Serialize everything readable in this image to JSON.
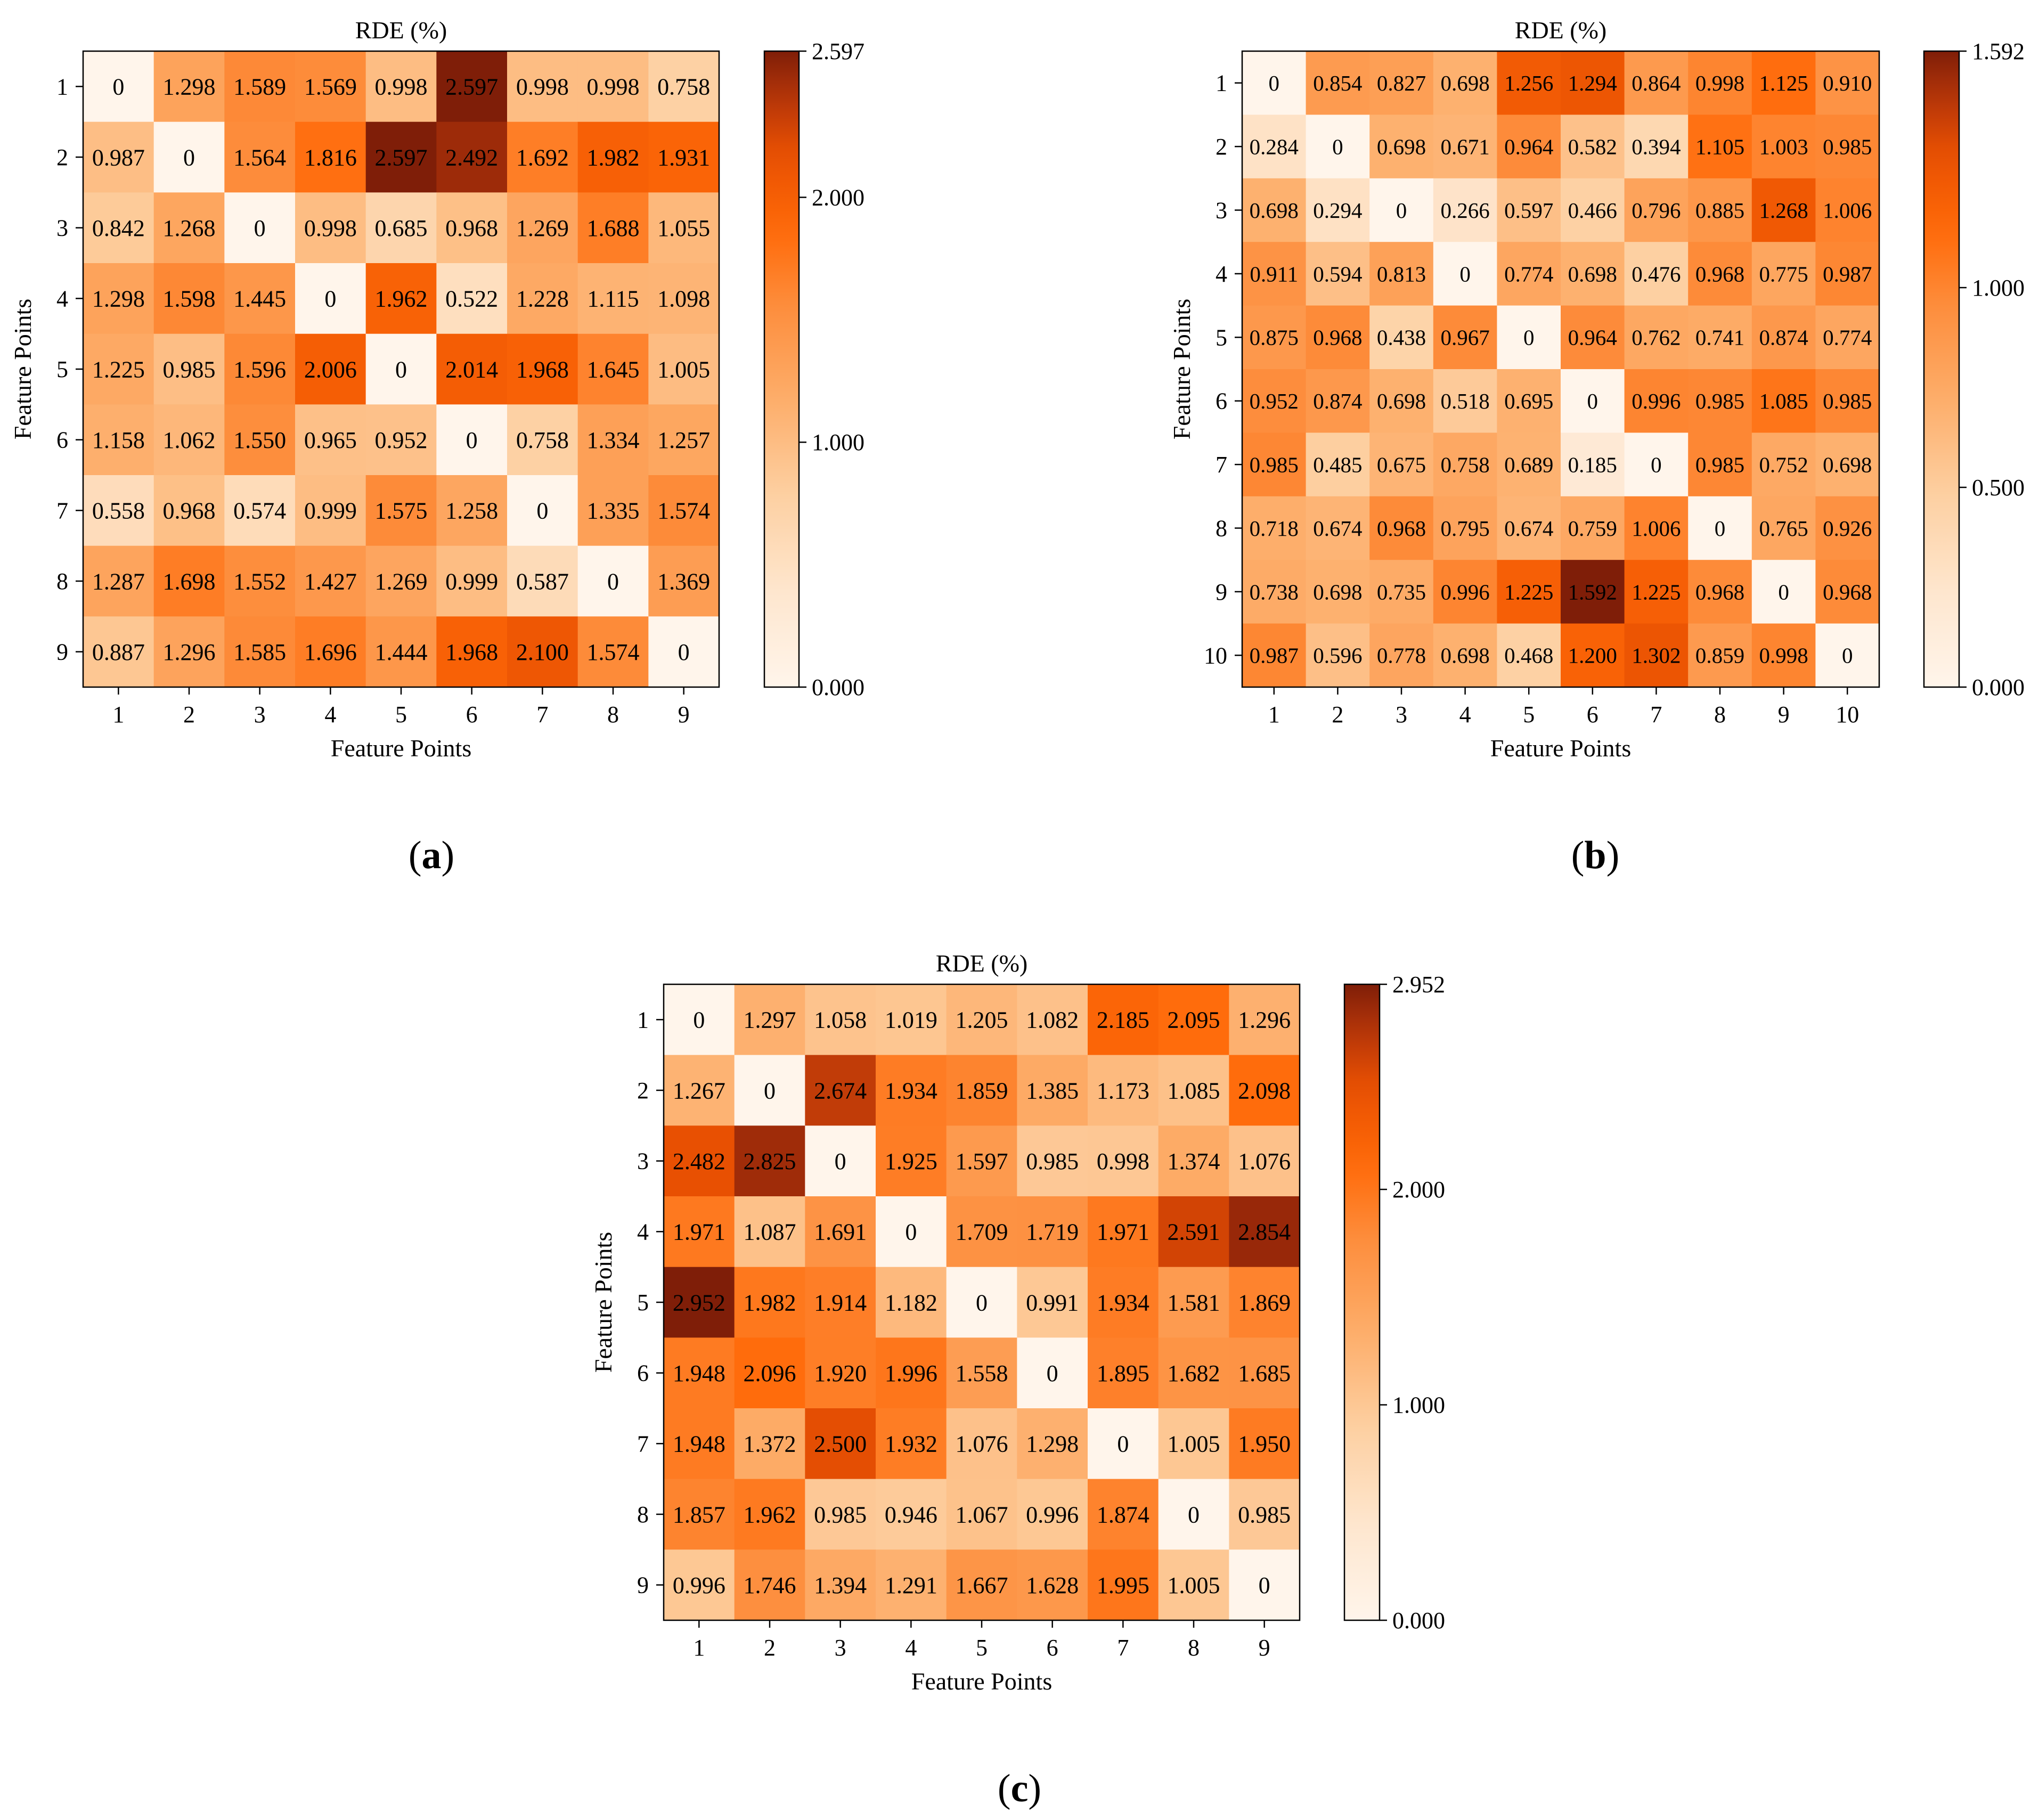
{
  "chart_data": [
    {
      "type": "heatmap",
      "panel_label": "a",
      "title": "RDE (%)",
      "xlabel": "Feature Points",
      "ylabel": "Feature Points",
      "x_ticks": [
        "1",
        "2",
        "3",
        "4",
        "5",
        "6",
        "7",
        "8",
        "9"
      ],
      "y_ticks": [
        "1",
        "2",
        "3",
        "4",
        "5",
        "6",
        "7",
        "8",
        "9"
      ],
      "colorbar": {
        "min": 0.0,
        "max": 2.597,
        "ticks": [
          "0.000",
          "1.000",
          "2.000",
          "2.597"
        ]
      },
      "values": [
        [
          "0",
          "1.298",
          "1.589",
          "1.569",
          "0.998",
          "2.597",
          "0.998",
          "0.998",
          "0.758"
        ],
        [
          "0.987",
          "0",
          "1.564",
          "1.816",
          "2.597",
          "2.492",
          "1.692",
          "1.982",
          "1.931"
        ],
        [
          "0.842",
          "1.268",
          "0",
          "0.998",
          "0.685",
          "0.968",
          "1.269",
          "1.688",
          "1.055"
        ],
        [
          "1.298",
          "1.598",
          "1.445",
          "0",
          "1.962",
          "0.522",
          "1.228",
          "1.115",
          "1.098"
        ],
        [
          "1.225",
          "0.985",
          "1.596",
          "2.006",
          "0",
          "2.014",
          "1.968",
          "1.645",
          "1.005"
        ],
        [
          "1.158",
          "1.062",
          "1.550",
          "0.965",
          "0.952",
          "0",
          "0.758",
          "1.334",
          "1.257"
        ],
        [
          "0.558",
          "0.968",
          "0.574",
          "0.999",
          "1.575",
          "1.258",
          "0",
          "1.335",
          "1.574"
        ],
        [
          "1.287",
          "1.698",
          "1.552",
          "1.427",
          "1.269",
          "0.999",
          "0.587",
          "0",
          "1.369"
        ],
        [
          "0.887",
          "1.296",
          "1.585",
          "1.696",
          "1.444",
          "1.968",
          "2.100",
          "1.574",
          "0"
        ]
      ]
    },
    {
      "type": "heatmap",
      "panel_label": "b",
      "title": "RDE (%)",
      "xlabel": "Feature Points",
      "ylabel": "Feature Points",
      "x_ticks": [
        "1",
        "2",
        "3",
        "4",
        "5",
        "6",
        "7",
        "8",
        "9",
        "10"
      ],
      "y_ticks": [
        "1",
        "2",
        "3",
        "4",
        "5",
        "6",
        "7",
        "8",
        "9",
        "10"
      ],
      "colorbar": {
        "min": 0.0,
        "max": 1.592,
        "ticks": [
          "0.000",
          "0.500",
          "1.000",
          "1.592"
        ]
      },
      "values": [
        [
          "0",
          "0.854",
          "0.827",
          "0.698",
          "1.256",
          "1.294",
          "0.864",
          "0.998",
          "1.125",
          "0.910"
        ],
        [
          "0.284",
          "0",
          "0.698",
          "0.671",
          "0.964",
          "0.582",
          "0.394",
          "1.105",
          "1.003",
          "0.985"
        ],
        [
          "0.698",
          "0.294",
          "0",
          "0.266",
          "0.597",
          "0.466",
          "0.796",
          "0.885",
          "1.268",
          "1.006"
        ],
        [
          "0.911",
          "0.594",
          "0.813",
          "0",
          "0.774",
          "0.698",
          "0.476",
          "0.968",
          "0.775",
          "0.987"
        ],
        [
          "0.875",
          "0.968",
          "0.438",
          "0.967",
          "0",
          "0.964",
          "0.762",
          "0.741",
          "0.874",
          "0.774"
        ],
        [
          "0.952",
          "0.874",
          "0.698",
          "0.518",
          "0.695",
          "0",
          "0.996",
          "0.985",
          "1.085",
          "0.985"
        ],
        [
          "0.985",
          "0.485",
          "0.675",
          "0.758",
          "0.689",
          "0.185",
          "0",
          "0.985",
          "0.752",
          "0.698"
        ],
        [
          "0.718",
          "0.674",
          "0.968",
          "0.795",
          "0.674",
          "0.759",
          "1.006",
          "0",
          "0.765",
          "0.926"
        ],
        [
          "0.738",
          "0.698",
          "0.735",
          "0.996",
          "1.225",
          "1.592",
          "1.225",
          "0.968",
          "0",
          "0.968"
        ],
        [
          "0.987",
          "0.596",
          "0.778",
          "0.698",
          "0.468",
          "1.200",
          "1.302",
          "0.859",
          "0.998",
          "0"
        ]
      ]
    },
    {
      "type": "heatmap",
      "panel_label": "c",
      "title": "RDE (%)",
      "xlabel": "Feature Points",
      "ylabel": "Feature Points",
      "x_ticks": [
        "1",
        "2",
        "3",
        "4",
        "5",
        "6",
        "7",
        "8",
        "9"
      ],
      "y_ticks": [
        "1",
        "2",
        "3",
        "4",
        "5",
        "6",
        "7",
        "8",
        "9"
      ],
      "colorbar": {
        "min": 0.0,
        "max": 2.952,
        "ticks": [
          "0.000",
          "1.000",
          "2.000",
          "2.952"
        ]
      },
      "values": [
        [
          "0",
          "1.297",
          "1.058",
          "1.019",
          "1.205",
          "1.082",
          "2.185",
          "2.095",
          "1.296"
        ],
        [
          "1.267",
          "0",
          "2.674",
          "1.934",
          "1.859",
          "1.385",
          "1.173",
          "1.085",
          "2.098"
        ],
        [
          "2.482",
          "2.825",
          "0",
          "1.925",
          "1.597",
          "0.985",
          "0.998",
          "1.374",
          "1.076"
        ],
        [
          "1.971",
          "1.087",
          "1.691",
          "0",
          "1.709",
          "1.719",
          "1.971",
          "2.591",
          "2.854"
        ],
        [
          "2.952",
          "1.982",
          "1.914",
          "1.182",
          "0",
          "0.991",
          "1.934",
          "1.581",
          "1.869"
        ],
        [
          "1.948",
          "2.096",
          "1.920",
          "1.996",
          "1.558",
          "0",
          "1.895",
          "1.682",
          "1.685"
        ],
        [
          "1.948",
          "1.372",
          "2.500",
          "1.932",
          "1.076",
          "1.298",
          "0",
          "1.005",
          "1.950"
        ],
        [
          "1.857",
          "1.962",
          "0.985",
          "0.946",
          "1.067",
          "0.996",
          "1.874",
          "0",
          "0.985"
        ],
        [
          "0.996",
          "1.746",
          "1.394",
          "1.291",
          "1.667",
          "1.628",
          "1.995",
          "1.005",
          "0"
        ]
      ]
    }
  ]
}
